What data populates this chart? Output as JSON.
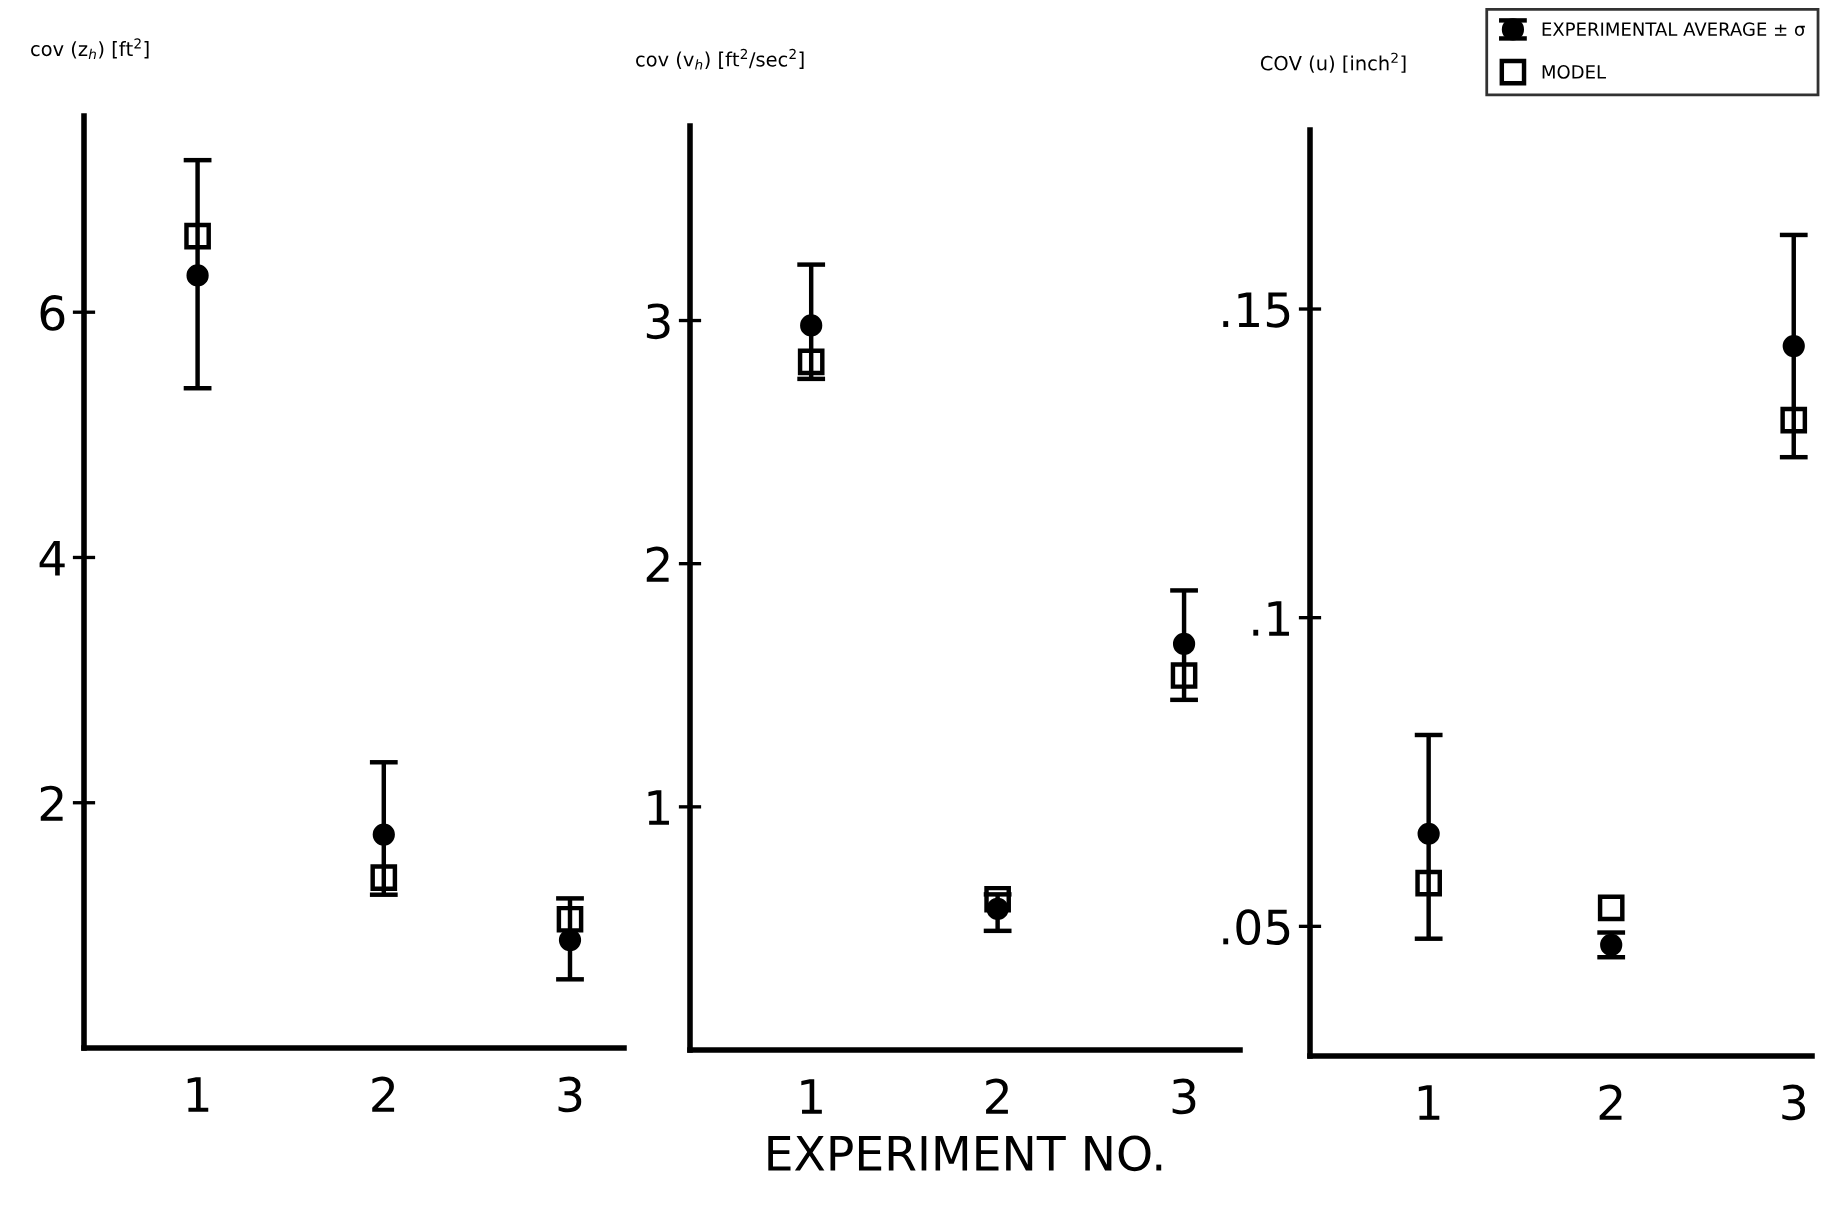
{
  "chart_data": [
    {
      "type": "scatter",
      "ylabel": "cov (z$_{h}$) [ft$^{2}$]",
      "x": [
        1,
        2,
        3
      ],
      "xlim": [
        0.39,
        3.29
      ],
      "xticks": [
        1,
        2,
        3
      ],
      "ylim": [
        0,
        7.6
      ],
      "yticks": [
        2,
        4,
        6
      ],
      "grid": false,
      "legend": false,
      "series": [
        {
          "color": "#000000",
          "marker": "circle",
          "values": [
            6.3,
            1.74,
            0.88
          ],
          "errors": [
            [
              5.38,
              7.24
            ],
            [
              1.25,
              2.33
            ],
            [
              0.56,
              1.22
            ]
          ]
        },
        {
          "color": "#000000",
          "marker": "square",
          "values": [
            6.62,
            1.39,
            1.05
          ]
        }
      ]
    },
    {
      "type": "scatter",
      "ylabel": "cov (v$_{h}$) [ft$^{2}$/sec$^{2}$]",
      "xlabel": "EXPERIMENT NO.",
      "x": [
        1,
        2,
        3
      ],
      "xlim": [
        0.35,
        3.3
      ],
      "xticks": [
        1,
        2,
        3
      ],
      "ylim": [
        0,
        3.8
      ],
      "yticks": [
        1,
        2,
        3
      ],
      "grid": false,
      "legend": false,
      "series": [
        {
          "color": "#000000",
          "marker": "circle",
          "values": [
            2.98,
            0.58,
            1.67
          ],
          "errors": [
            [
              2.76,
              3.23
            ],
            [
              0.49,
              0.64
            ],
            [
              1.44,
              1.89
            ]
          ]
        },
        {
          "color": "#000000",
          "marker": "square",
          "values": [
            2.83,
            0.62,
            1.54
          ]
        }
      ]
    },
    {
      "type": "scatter",
      "ylabel": "COV (u) [inch$^{2}$]",
      "x": [
        1,
        2,
        3
      ],
      "xlim": [
        0.35,
        3.1
      ],
      "xticks": [
        1,
        2,
        3
      ],
      "ylim": [
        0.029,
        0.179
      ],
      "yticks": [
        {
          "value": 0.05,
          "label": ".05"
        },
        {
          "value": 0.1,
          "label": ".1"
        },
        {
          "value": 0.15,
          "label": ".15"
        }
      ],
      "grid": false,
      "legend": "top right",
      "series": [
        {
          "name": "EXPERIMENTAL AVERAGE ± σ",
          "color": "#000000",
          "marker": "circle",
          "values": [
            0.065,
            0.047,
            0.144
          ],
          "errors": [
            [
              0.048,
              0.081
            ],
            [
              0.045,
              0.049
            ],
            [
              0.126,
              0.162
            ]
          ]
        },
        {
          "name": "MODEL",
          "color": "#000000",
          "marker": "square",
          "values": [
            0.057,
            0.053,
            0.132
          ]
        }
      ]
    }
  ]
}
